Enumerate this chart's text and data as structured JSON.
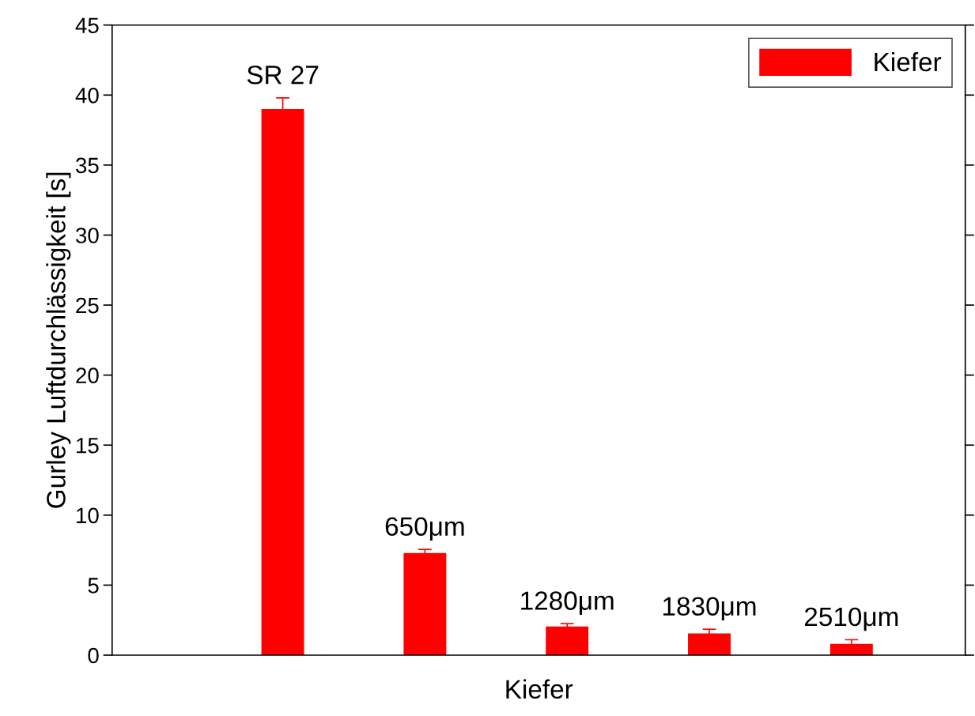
{
  "chart_data": {
    "type": "bar",
    "xlabel": "Kiefer",
    "ylabel": "Gurley Luftdurchlässigkeit [s]",
    "categories": [
      "SR 27",
      "650μm",
      "1280μm",
      "1830μm",
      "2510μm"
    ],
    "series": [
      {
        "name": "Kiefer",
        "color": "#ff0000",
        "values": [
          39.0,
          7.3,
          2.05,
          1.55,
          0.8
        ],
        "errors": [
          0.8,
          0.25,
          0.2,
          0.3,
          0.3
        ]
      }
    ],
    "ylim": [
      0,
      45
    ],
    "yticks": [
      0,
      5,
      10,
      15,
      20,
      25,
      30,
      35,
      40,
      45
    ],
    "tick_labels": "y",
    "legend": "top right",
    "grid": false
  }
}
